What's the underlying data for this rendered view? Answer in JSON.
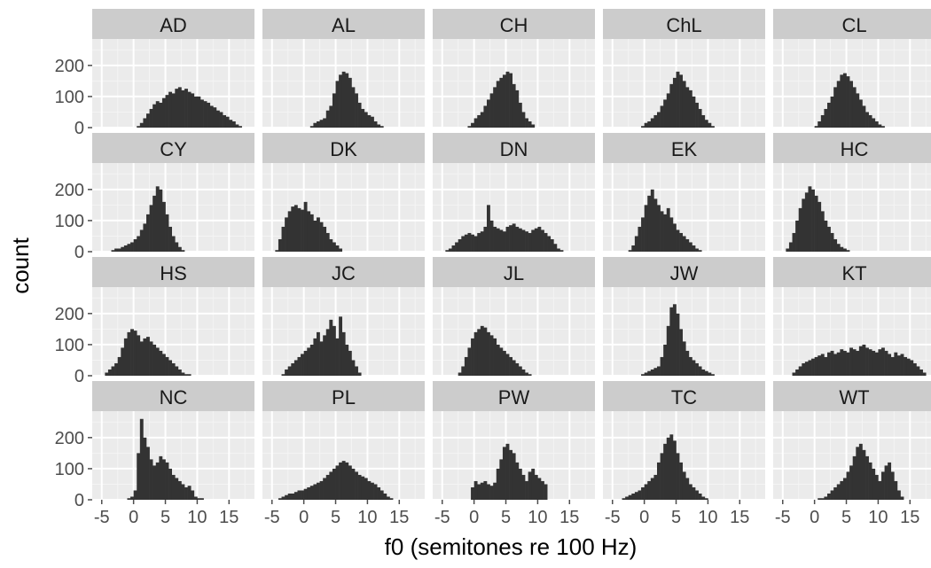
{
  "chart_data": {
    "type": "histogram-facets",
    "xlabel": "f0 (semitones re 100 Hz)",
    "ylabel": "count",
    "xlim": [
      -6.5,
      19
    ],
    "ylim": [
      0,
      285
    ],
    "x_ticks": [
      -5,
      0,
      5,
      10,
      15
    ],
    "x_tick_labels": [
      "-5",
      "0",
      "5",
      "10",
      "15"
    ],
    "y_ticks": [
      0,
      100,
      200
    ],
    "y_tick_labels": [
      "0",
      "100",
      "200"
    ],
    "grid": true,
    "bar_color": "#333333",
    "panel_bg": "#ebebeb",
    "strip_bg": "#cccccc",
    "bin_start": -5.5,
    "bin_width": 0.5,
    "panels": [
      {
        "label": "AD",
        "counts": [
          0,
          0,
          0,
          0,
          0,
          0,
          0,
          0,
          0,
          0,
          0,
          0,
          5,
          15,
          30,
          45,
          60,
          75,
          85,
          80,
          95,
          105,
          115,
          110,
          125,
          130,
          120,
          125,
          115,
          110,
          100,
          100,
          90,
          85,
          80,
          70,
          65,
          55,
          50,
          40,
          35,
          25,
          20,
          10,
          5,
          0,
          0,
          0,
          0,
          0,
          0
        ]
      },
      {
        "label": "AL",
        "counts": [
          0,
          0,
          0,
          0,
          0,
          0,
          0,
          0,
          0,
          0,
          0,
          0,
          0,
          5,
          15,
          20,
          25,
          30,
          55,
          70,
          110,
          150,
          170,
          180,
          175,
          160,
          130,
          110,
          80,
          60,
          50,
          40,
          35,
          20,
          10,
          5,
          0,
          0,
          0,
          0,
          0,
          0,
          0,
          0,
          0,
          0,
          0,
          0,
          0,
          0,
          0
        ]
      },
      {
        "label": "CH",
        "counts": [
          0,
          0,
          0,
          0,
          0,
          0,
          0,
          0,
          0,
          5,
          15,
          30,
          40,
          50,
          70,
          90,
          110,
          130,
          150,
          160,
          170,
          180,
          175,
          140,
          120,
          80,
          50,
          30,
          20,
          10,
          0,
          0,
          0,
          0,
          0,
          0,
          0,
          0,
          0,
          0,
          0,
          0,
          0,
          0,
          0,
          0,
          0,
          0,
          0,
          0,
          0
        ]
      },
      {
        "label": "ChL",
        "counts": [
          0,
          0,
          0,
          0,
          0,
          0,
          0,
          0,
          0,
          0,
          5,
          15,
          20,
          30,
          40,
          50,
          70,
          90,
          110,
          140,
          160,
          180,
          170,
          150,
          130,
          120,
          100,
          80,
          60,
          40,
          25,
          15,
          5,
          0,
          0,
          0,
          0,
          0,
          0,
          0,
          0,
          0,
          0,
          0,
          0,
          0,
          0,
          0,
          0,
          0,
          0
        ]
      },
      {
        "label": "CL",
        "counts": [
          0,
          0,
          0,
          0,
          0,
          0,
          0,
          0,
          0,
          0,
          0,
          5,
          20,
          40,
          60,
          80,
          100,
          130,
          150,
          170,
          175,
          165,
          150,
          130,
          110,
          90,
          70,
          50,
          40,
          30,
          20,
          10,
          5,
          0,
          0,
          0,
          0,
          0,
          0,
          0,
          0,
          0,
          0,
          0,
          0,
          0,
          0,
          0,
          0,
          0,
          0
        ]
      },
      {
        "label": "CY",
        "counts": [
          0,
          0,
          0,
          0,
          5,
          10,
          10,
          15,
          20,
          25,
          30,
          40,
          50,
          70,
          90,
          120,
          150,
          180,
          210,
          200,
          160,
          120,
          80,
          50,
          30,
          15,
          5,
          0,
          0,
          0,
          0,
          0,
          0,
          0,
          0,
          0,
          0,
          0,
          0,
          0,
          0,
          0,
          0,
          0,
          0,
          0,
          0,
          0,
          0,
          0,
          0
        ]
      },
      {
        "label": "DK",
        "counts": [
          0,
          0,
          5,
          40,
          80,
          110,
          130,
          145,
          150,
          140,
          135,
          160,
          130,
          120,
          100,
          110,
          95,
          80,
          60,
          40,
          30,
          20,
          10,
          0,
          0,
          0,
          0,
          0,
          0,
          0,
          0,
          0,
          0,
          0,
          0,
          0,
          0,
          0,
          0,
          0,
          0,
          0,
          0,
          0,
          0,
          0,
          0,
          0,
          0,
          0,
          0
        ]
      },
      {
        "label": "DN",
        "counts": [
          0,
          0,
          5,
          10,
          20,
          30,
          40,
          50,
          55,
          60,
          55,
          50,
          60,
          65,
          80,
          150,
          100,
          80,
          75,
          70,
          65,
          80,
          85,
          90,
          80,
          75,
          70,
          65,
          60,
          70,
          75,
          80,
          70,
          60,
          50,
          40,
          25,
          10,
          5,
          0,
          0,
          0,
          0,
          0,
          0,
          0,
          0,
          0,
          0,
          0,
          0
        ]
      },
      {
        "label": "EK",
        "counts": [
          0,
          0,
          0,
          0,
          0,
          0,
          5,
          20,
          50,
          80,
          110,
          150,
          180,
          200,
          170,
          150,
          130,
          120,
          140,
          110,
          90,
          70,
          60,
          50,
          40,
          30,
          20,
          10,
          5,
          0,
          0,
          0,
          0,
          0,
          0,
          0,
          0,
          0,
          0,
          0,
          0,
          0,
          0,
          0,
          0,
          0,
          0,
          0,
          0,
          0,
          0
        ]
      },
      {
        "label": "HC",
        "counts": [
          0,
          0,
          10,
          30,
          60,
          100,
          140,
          170,
          190,
          210,
          200,
          180,
          160,
          130,
          100,
          80,
          60,
          40,
          25,
          15,
          10,
          5,
          0,
          0,
          0,
          0,
          0,
          0,
          0,
          0,
          0,
          0,
          0,
          0,
          0,
          0,
          0,
          0,
          0,
          0,
          0,
          0,
          0,
          0,
          0,
          0,
          0,
          0,
          0,
          0,
          0
        ]
      },
      {
        "label": "HS",
        "counts": [
          0,
          0,
          10,
          20,
          30,
          40,
          60,
          90,
          120,
          140,
          150,
          145,
          130,
          110,
          120,
          125,
          110,
          100,
          90,
          80,
          70,
          60,
          50,
          40,
          30,
          20,
          10,
          5,
          5,
          0,
          0,
          0,
          0,
          0,
          0,
          0,
          0,
          0,
          0,
          0,
          0,
          0,
          0,
          0,
          0,
          0,
          0,
          0,
          0,
          0,
          0
        ]
      },
      {
        "label": "JC",
        "counts": [
          0,
          0,
          0,
          0,
          5,
          20,
          30,
          40,
          50,
          60,
          70,
          80,
          90,
          100,
          120,
          140,
          110,
          130,
          150,
          180,
          160,
          120,
          190,
          140,
          100,
          80,
          50,
          30,
          10,
          0,
          0,
          0,
          0,
          0,
          0,
          0,
          0,
          0,
          0,
          0,
          0,
          0,
          0,
          0,
          0,
          0,
          0,
          0,
          0,
          0,
          0
        ]
      },
      {
        "label": "JL",
        "counts": [
          0,
          0,
          0,
          0,
          0,
          0,
          10,
          30,
          60,
          90,
          120,
          140,
          150,
          160,
          155,
          140,
          130,
          120,
          100,
          90,
          80,
          70,
          60,
          50,
          40,
          30,
          20,
          10,
          5,
          0,
          0,
          0,
          0,
          0,
          0,
          0,
          0,
          0,
          0,
          0,
          0,
          0,
          0,
          0,
          0,
          0,
          0,
          0,
          0,
          0,
          0
        ]
      },
      {
        "label": "JW",
        "counts": [
          0,
          0,
          0,
          0,
          0,
          0,
          0,
          0,
          0,
          0,
          5,
          10,
          15,
          20,
          25,
          30,
          60,
          100,
          160,
          220,
          230,
          200,
          150,
          110,
          80,
          60,
          50,
          40,
          30,
          20,
          15,
          10,
          5,
          0,
          0,
          0,
          0,
          0,
          0,
          0,
          0,
          0,
          0,
          0,
          0,
          0,
          0,
          0,
          0,
          0,
          0
        ]
      },
      {
        "label": "KT",
        "counts": [
          0,
          0,
          0,
          0,
          10,
          20,
          30,
          40,
          45,
          50,
          55,
          60,
          65,
          70,
          60,
          75,
          80,
          70,
          75,
          85,
          80,
          75,
          90,
          85,
          80,
          95,
          100,
          90,
          85,
          80,
          75,
          85,
          90,
          80,
          70,
          60,
          75,
          65,
          70,
          60,
          55,
          50,
          40,
          30,
          20,
          10,
          0,
          0,
          0,
          0,
          0
        ]
      },
      {
        "label": "NC",
        "counts": [
          0,
          0,
          0,
          0,
          0,
          0,
          0,
          0,
          0,
          5,
          10,
          30,
          150,
          260,
          200,
          170,
          130,
          110,
          120,
          140,
          130,
          120,
          100,
          80,
          70,
          60,
          50,
          40,
          45,
          30,
          10,
          5,
          5,
          0,
          0,
          0,
          0,
          0,
          0,
          0,
          0,
          0,
          0,
          0,
          0,
          0,
          0,
          0,
          0,
          0,
          0
        ]
      },
      {
        "label": "PL",
        "counts": [
          0,
          0,
          0,
          5,
          10,
          15,
          20,
          20,
          25,
          30,
          30,
          35,
          40,
          45,
          50,
          55,
          60,
          70,
          80,
          90,
          100,
          110,
          120,
          125,
          120,
          110,
          100,
          90,
          80,
          75,
          70,
          60,
          55,
          50,
          40,
          30,
          20,
          10,
          5,
          0,
          0,
          0,
          0,
          0,
          0,
          0,
          0,
          0,
          0,
          0,
          0,
          0,
          0,
          0
        ]
      },
      {
        "label": "PW",
        "counts": [
          0,
          0,
          0,
          0,
          0,
          0,
          0,
          0,
          0,
          0,
          40,
          60,
          50,
          55,
          60,
          50,
          45,
          55,
          100,
          130,
          170,
          180,
          160,
          150,
          120,
          100,
          80,
          60,
          90,
          100,
          80,
          70,
          60,
          50,
          0,
          0,
          0,
          0,
          0,
          0,
          0,
          0,
          0,
          0,
          0,
          0,
          0,
          0,
          0,
          0,
          0
        ]
      },
      {
        "label": "TC",
        "counts": [
          0,
          0,
          0,
          0,
          5,
          10,
          15,
          20,
          25,
          30,
          40,
          50,
          60,
          70,
          80,
          120,
          150,
          180,
          200,
          210,
          190,
          150,
          120,
          90,
          70,
          50,
          40,
          30,
          20,
          10,
          5,
          0,
          0,
          0,
          0,
          0,
          0,
          0,
          0,
          0,
          0,
          0,
          0,
          0,
          0,
          0,
          0,
          0,
          0,
          0,
          0
        ]
      },
      {
        "label": "WT",
        "counts": [
          0,
          0,
          0,
          0,
          0,
          0,
          0,
          0,
          0,
          0,
          0,
          0,
          5,
          5,
          10,
          20,
          30,
          40,
          50,
          60,
          70,
          90,
          110,
          140,
          170,
          180,
          160,
          140,
          120,
          100,
          80,
          60,
          90,
          110,
          120,
          90,
          60,
          30,
          10,
          0,
          0,
          0,
          0,
          0,
          0,
          0,
          0,
          0,
          0,
          0,
          0
        ]
      }
    ]
  }
}
